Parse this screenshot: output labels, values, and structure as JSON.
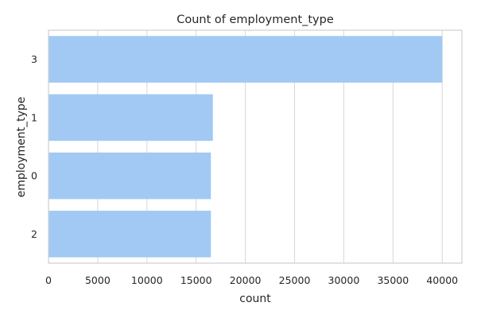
{
  "chart_data": {
    "type": "bar",
    "orientation": "horizontal",
    "title": "Count of employment_type",
    "xlabel": "count",
    "ylabel": "employment_type",
    "categories": [
      "3",
      "1",
      "0",
      "2"
    ],
    "values": [
      40000,
      16700,
      16500,
      16500
    ],
    "xlim": [
      0,
      42000
    ],
    "xticks": [
      0,
      5000,
      10000,
      15000,
      20000,
      25000,
      30000,
      35000,
      40000
    ],
    "grid": true,
    "bar_color": "#a1c9f4"
  }
}
